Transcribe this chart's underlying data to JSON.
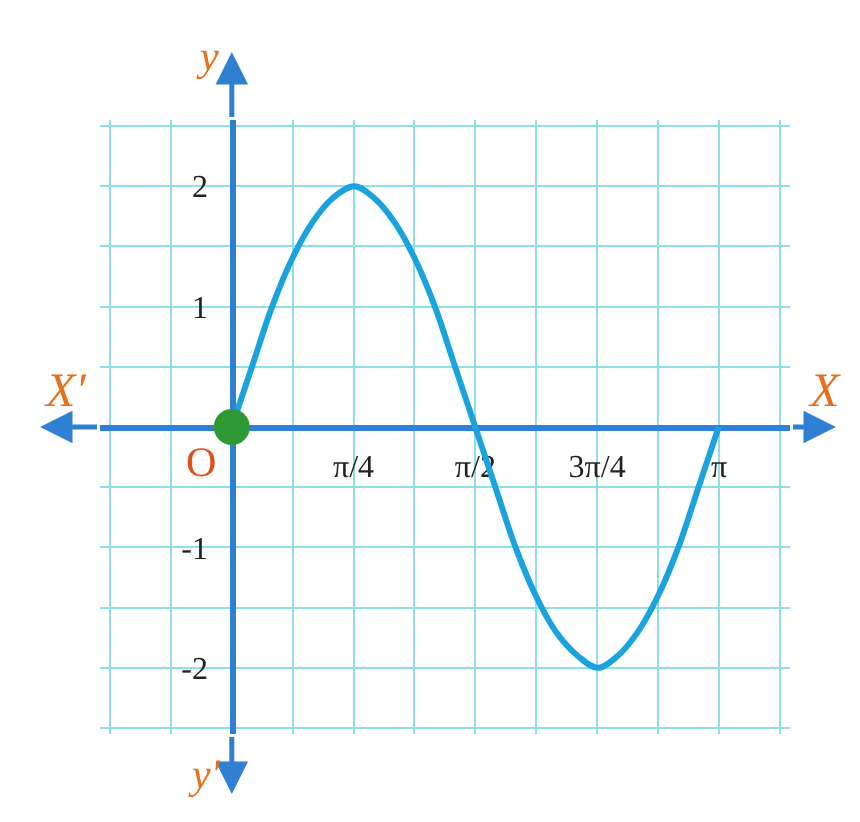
{
  "chart_data": {
    "type": "line",
    "xlabel": "X",
    "ylabel": "y",
    "annotations": [
      "X′",
      "y′",
      {
        "text": "O",
        "x": 0,
        "y": 0
      }
    ],
    "series": [
      {
        "color": "#1aa3de",
        "x": [
          0,
          0.13,
          0.26,
          0.39,
          0.52,
          0.65,
          0.79,
          0.92,
          1.05,
          1.18,
          1.31,
          1.44,
          1.57,
          1.7,
          1.83,
          1.96,
          2.09,
          2.23,
          2.36,
          2.49,
          2.62,
          2.75,
          2.88,
          3.01,
          3.14
        ],
        "values": [
          0,
          0.5,
          1,
          1.4,
          1.7,
          1.9,
          2,
          1.9,
          1.7,
          1.4,
          1,
          0.5,
          0,
          -0.5,
          -1,
          -1.4,
          -1.7,
          -1.9,
          -2,
          -1.9,
          -1.7,
          -1.4,
          -1,
          -0.5,
          0
        ]
      },
      {
        "type": "scatter",
        "color": "#2f9a35",
        "marker": "circle",
        "x": [
          0
        ],
        "values": [
          0
        ]
      }
    ],
    "xlim": [
      -0.85,
      3.6
    ],
    "ylim": [
      -2.55,
      2.55
    ],
    "xticks": [
      {
        "value": -0.785,
        "label": null
      },
      {
        "value": -0.393,
        "label": null
      },
      {
        "value": 0.393,
        "label": null
      },
      {
        "value": 0.785,
        "label": "π/4"
      },
      {
        "value": 1.178,
        "label": null
      },
      {
        "value": 1.571,
        "label": "π/2"
      },
      {
        "value": 1.963,
        "label": null
      },
      {
        "value": 2.356,
        "label": "3π/4"
      },
      {
        "value": 2.749,
        "label": null
      },
      {
        "value": 3.142,
        "label": "π"
      },
      {
        "value": 3.534,
        "label": null
      }
    ],
    "yticks": [
      {
        "value": -2.5,
        "label": null
      },
      -2,
      {
        "value": -1.5,
        "label": null
      },
      -1,
      {
        "value": -0.5,
        "label": null
      },
      {
        "value": 0.5,
        "label": null
      },
      1,
      {
        "value": 1.5,
        "label": null
      },
      2,
      {
        "value": 2.5,
        "label": null
      }
    ],
    "grid": true
  }
}
